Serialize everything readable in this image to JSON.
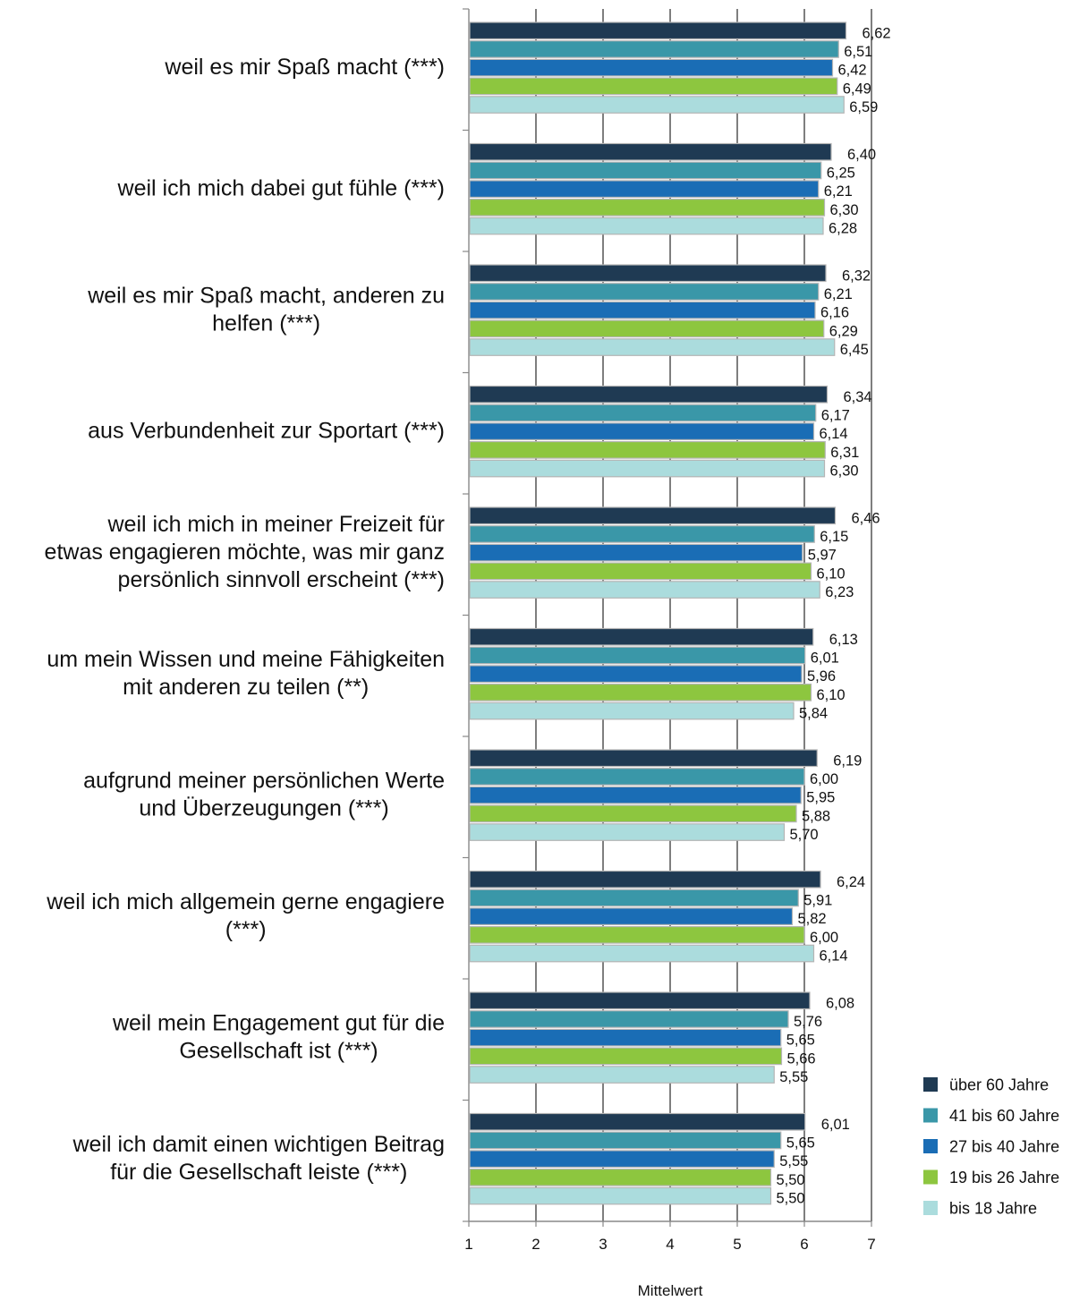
{
  "chart_data": {
    "type": "bar",
    "orientation": "horizontal",
    "xlabel": "Mittelwert",
    "xlim": [
      1,
      7
    ],
    "xticks": [
      "1",
      "2",
      "3",
      "4",
      "5",
      "6",
      "7"
    ],
    "grid": "vertical",
    "legend_position": "bottom-right",
    "categories": [
      [
        "weil es mir Spaß macht (***)"
      ],
      [
        "weil ich mich dabei gut fühle (***)"
      ],
      [
        "weil es mir Spaß macht, anderen zu",
        "helfen (***)"
      ],
      [
        "aus Verbundenheit zur Sportart (***)"
      ],
      [
        "weil ich mich in meiner Freizeit für",
        "etwas engagieren möchte, was mir ganz",
        "persönlich sinnvoll erscheint (***)"
      ],
      [
        "um mein Wissen und meine Fähigkeiten",
        "mit anderen zu teilen (**)"
      ],
      [
        "aufgrund meiner persönlichen Werte",
        "und Überzeugungen (***)"
      ],
      [
        "weil ich mich allgemein gerne engagiere",
        "(***)"
      ],
      [
        "weil mein Engagement gut für die",
        "Gesellschaft ist (***)"
      ],
      [
        "weil ich damit einen wichtigen Beitrag",
        "für die Gesellschaft leiste (***)"
      ]
    ],
    "series": [
      {
        "name": "über 60 Jahre",
        "color": "#1F3A53",
        "values": [
          6.62,
          6.4,
          6.32,
          6.34,
          6.46,
          6.13,
          6.19,
          6.24,
          6.08,
          6.01
        ],
        "labels": [
          "6,62",
          "6,40",
          "6,32",
          "6,34",
          "6,46",
          "6,13",
          "6,19",
          "6,24",
          "6,08",
          "6,01"
        ]
      },
      {
        "name": "41 bis 60 Jahre",
        "color": "#3A97A8",
        "values": [
          6.51,
          6.25,
          6.21,
          6.17,
          6.15,
          6.01,
          6.0,
          5.91,
          5.76,
          5.65
        ],
        "labels": [
          "6,51",
          "6,25",
          "6,21",
          "6,17",
          "6,15",
          "6,01",
          "6,00",
          "5,91",
          "5,76",
          "5,65"
        ]
      },
      {
        "name": "27 bis 40 Jahre",
        "color": "#1A6DB5",
        "values": [
          6.42,
          6.21,
          6.16,
          6.14,
          5.97,
          5.96,
          5.95,
          5.82,
          5.65,
          5.55
        ],
        "labels": [
          "6,42",
          "6,21",
          "6,16",
          "6,14",
          "5,97",
          "5,96",
          "5,95",
          "5,82",
          "5,65",
          "5,55"
        ]
      },
      {
        "name": "19 bis 26 Jahre",
        "color": "#8DC63F",
        "values": [
          6.49,
          6.3,
          6.29,
          6.31,
          6.1,
          6.1,
          5.88,
          6.0,
          5.66,
          5.5
        ],
        "labels": [
          "6,49",
          "6,30",
          "6,29",
          "6,31",
          "6,10",
          "6,10",
          "5,88",
          "6,00",
          "5,66",
          "5,50"
        ]
      },
      {
        "name": "bis 18 Jahre",
        "color": "#ABDCDD",
        "values": [
          6.59,
          6.28,
          6.45,
          6.3,
          6.23,
          5.84,
          5.7,
          6.14,
          5.55,
          5.5
        ],
        "labels": [
          "6,59",
          "6,28",
          "6,45",
          "6,30",
          "6,23",
          "5,84",
          "5,70",
          "6,14",
          "5,55",
          "5,50"
        ]
      }
    ]
  }
}
